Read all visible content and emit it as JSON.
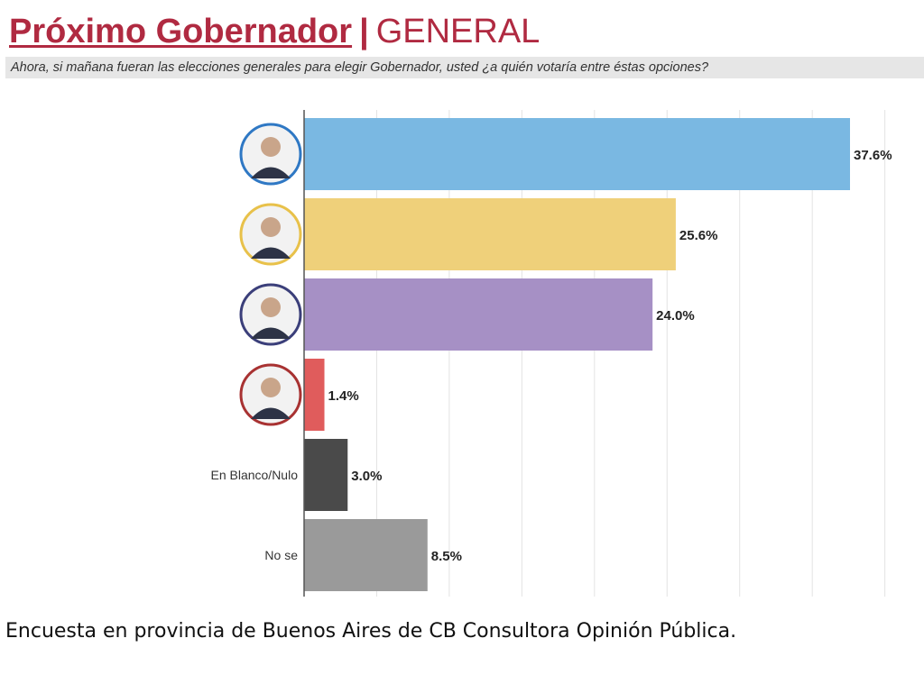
{
  "header": {
    "title_main": "Próximo Gobernador",
    "title_separator": "|",
    "title_sub": "GENERAL",
    "question": "Ahora, si mañana fueran las elecciones generales para elegir Gobernador, usted ¿a quién votaría entre éstas opciones?"
  },
  "chart_data": {
    "type": "bar",
    "orientation": "horizontal",
    "categories": [
      "",
      "",
      "",
      "",
      "En Blanco/Nulo",
      "No se"
    ],
    "category_markers": [
      "candidate-1-avatar",
      "candidate-2-avatar",
      "candidate-3-avatar",
      "candidate-4-avatar",
      "",
      ""
    ],
    "values": [
      37.6,
      25.6,
      24.0,
      1.4,
      3.0,
      8.5
    ],
    "value_labels": [
      "37.6%",
      "25.6%",
      "24.0%",
      "1.4%",
      "3.0%",
      "8.5%"
    ],
    "colors": [
      "#7ab8e2",
      "#efd07a",
      "#a690c5",
      "#e05c5c",
      "#4a4a4a",
      "#9a9a9a"
    ],
    "avatar_ring_colors": [
      "#2f78c4",
      "#e8c14a",
      "#3b3f7a",
      "#a83232"
    ],
    "xlim": [
      0,
      40
    ],
    "grid": true,
    "legend": "none"
  },
  "caption": "Encuesta en provincia de Buenos Aires de CB Consultora Opinión Pública."
}
